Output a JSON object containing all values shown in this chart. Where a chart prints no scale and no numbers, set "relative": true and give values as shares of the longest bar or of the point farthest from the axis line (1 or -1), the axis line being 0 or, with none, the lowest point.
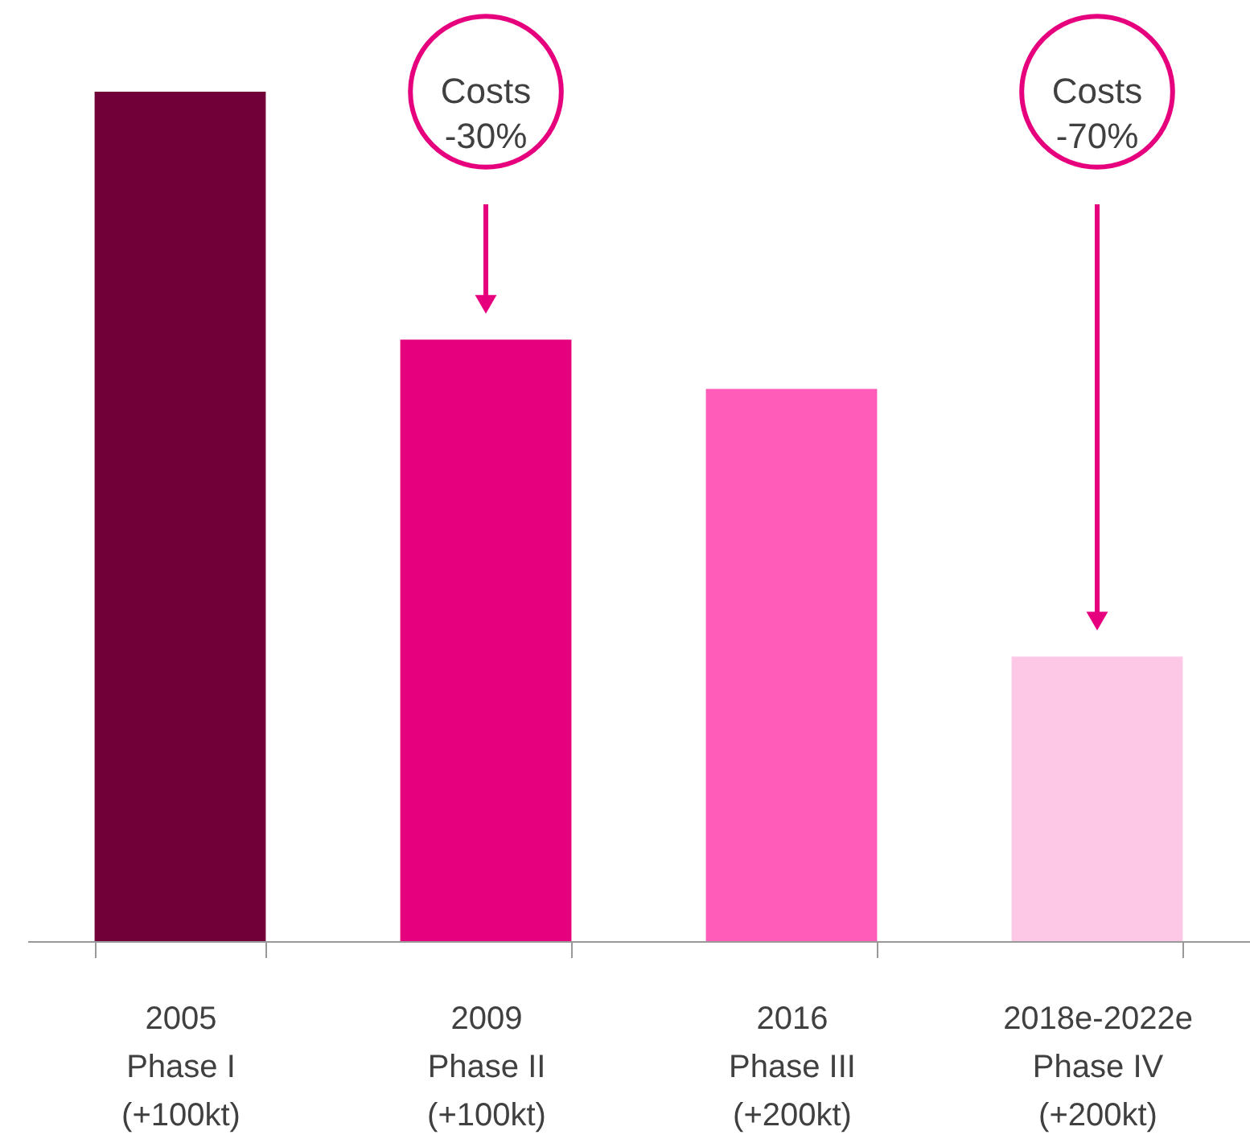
{
  "chart_data": {
    "type": "bar",
    "relative": true,
    "categories": [
      "2005\nPhase I\n(+100kt)",
      "2009\nPhase II\n(+100kt)",
      "2016\nPhase III\n(+200kt)",
      "2018e-2022e\nPhase IV\n(+200kt)"
    ],
    "values": [
      1,
      0.708,
      0.65,
      0.335
    ],
    "colors": [
      "#720038",
      "#e6007e",
      "#ff5cba",
      "#fcc8e6"
    ],
    "annotations": [
      "Costs\n-30%",
      "Costs\n-70%"
    ],
    "grid": false
  }
}
